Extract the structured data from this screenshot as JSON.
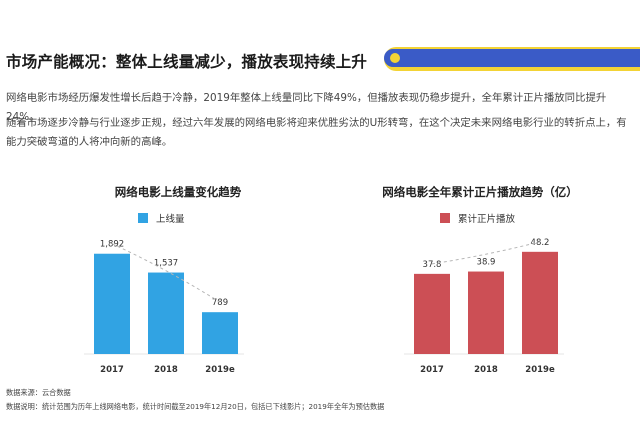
{
  "title": "市场产能概况：整体上线量减少，播放表现持续上升",
  "paragraphs": [
    "网络电影市场经历爆发性增长后趋于冷静，2019年整体上线量同比下降49%，但播放表现仍稳步提升，全年累计正片播放同比提升24%。",
    "随着市场逐步冷静与行业逐步正规，经过六年发展的网络电影将迎来优胜劣汰的U形转弯，在这个决定未来网络电影行业的转折点上，有能力突破弯道的人将冲向新的高峰。"
  ],
  "footer": {
    "source": "数据来源：云合数据",
    "note": "数据说明：统计范围为历年上线网络电影，统计时间截至2019年12月20日，包括已下线影片；2019年全年为预估数据"
  },
  "colors": {
    "bar_blue": "#31a3e3",
    "bar_red": "#cc4f55",
    "accent_yellow": "#f3d335",
    "accent_blue": "#3a5bc7"
  },
  "chart_data": [
    {
      "type": "bar",
      "title": "网络电影上线量变化趋势",
      "categories": [
        "2017",
        "2018",
        "2019e"
      ],
      "series": [
        {
          "name": "上线量",
          "values": [
            1892,
            1537,
            789
          ]
        }
      ],
      "data_labels": [
        "1,892",
        "1,537",
        "789"
      ],
      "ylim": [
        0,
        2000
      ],
      "trend_line": "dashed",
      "grid": false,
      "legend": "top-left"
    },
    {
      "type": "bar",
      "title": "网络电影全年累计正片播放趋势（亿）",
      "categories": [
        "2017",
        "2018",
        "2019e"
      ],
      "series": [
        {
          "name": "累计正片播放",
          "values": [
            37.8,
            38.9,
            48.2
          ]
        }
      ],
      "data_labels": [
        "37.8",
        "38.9",
        "48.2"
      ],
      "ylim": [
        0,
        50
      ],
      "trend_line": "dashed",
      "grid": false,
      "legend": "top-left"
    }
  ]
}
